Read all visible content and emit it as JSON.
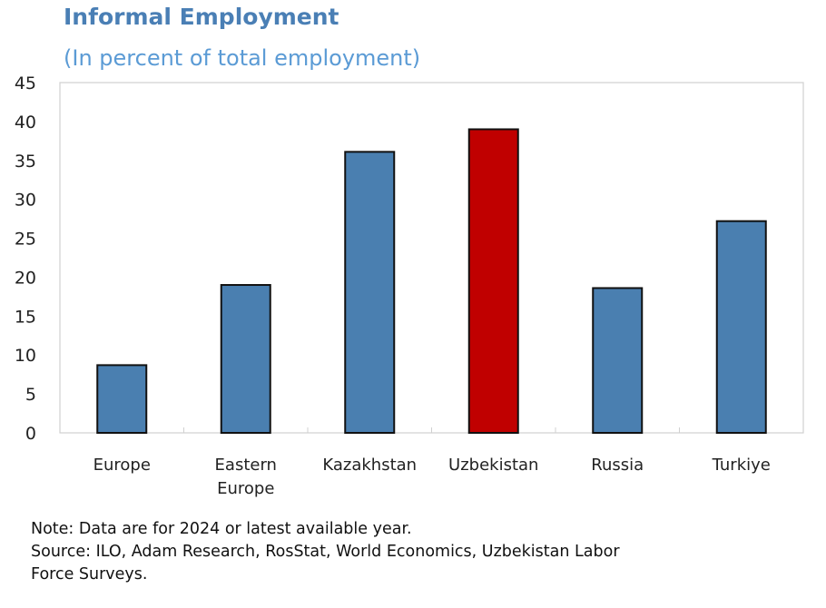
{
  "chart_data": {
    "type": "bar",
    "title": "Informal Employment",
    "subtitle": "(In percent of total employment)",
    "categories": [
      "Europe",
      "Eastern Europe",
      "Kazakhstan",
      "Uzbekistan",
      "Russia",
      "Turkiye"
    ],
    "category_lines": [
      [
        "Europe"
      ],
      [
        "Eastern",
        "Europe"
      ],
      [
        "Kazakhstan"
      ],
      [
        "Uzbekistan"
      ],
      [
        "Russia"
      ],
      [
        "Turkiye"
      ]
    ],
    "values": [
      8.7,
      19.0,
      36.1,
      39.0,
      18.6,
      27.2
    ],
    "colors": [
      "#4a7fb0",
      "#4a7fb0",
      "#4a7fb0",
      "#c00000",
      "#4a7fb0",
      "#4a7fb0"
    ],
    "ylim": [
      0,
      45
    ],
    "yticks": [
      0,
      5,
      10,
      15,
      20,
      25,
      30,
      35,
      40,
      45
    ],
    "xlabel": "",
    "ylabel": "",
    "grid": false
  },
  "notes": {
    "note": "Note: Data are for 2024 or latest available year.",
    "source_line1": "Source: ILO, Adam Research, RosStat, World Economics, Uzbekistan Labor",
    "source_line2": "Force Surveys."
  }
}
